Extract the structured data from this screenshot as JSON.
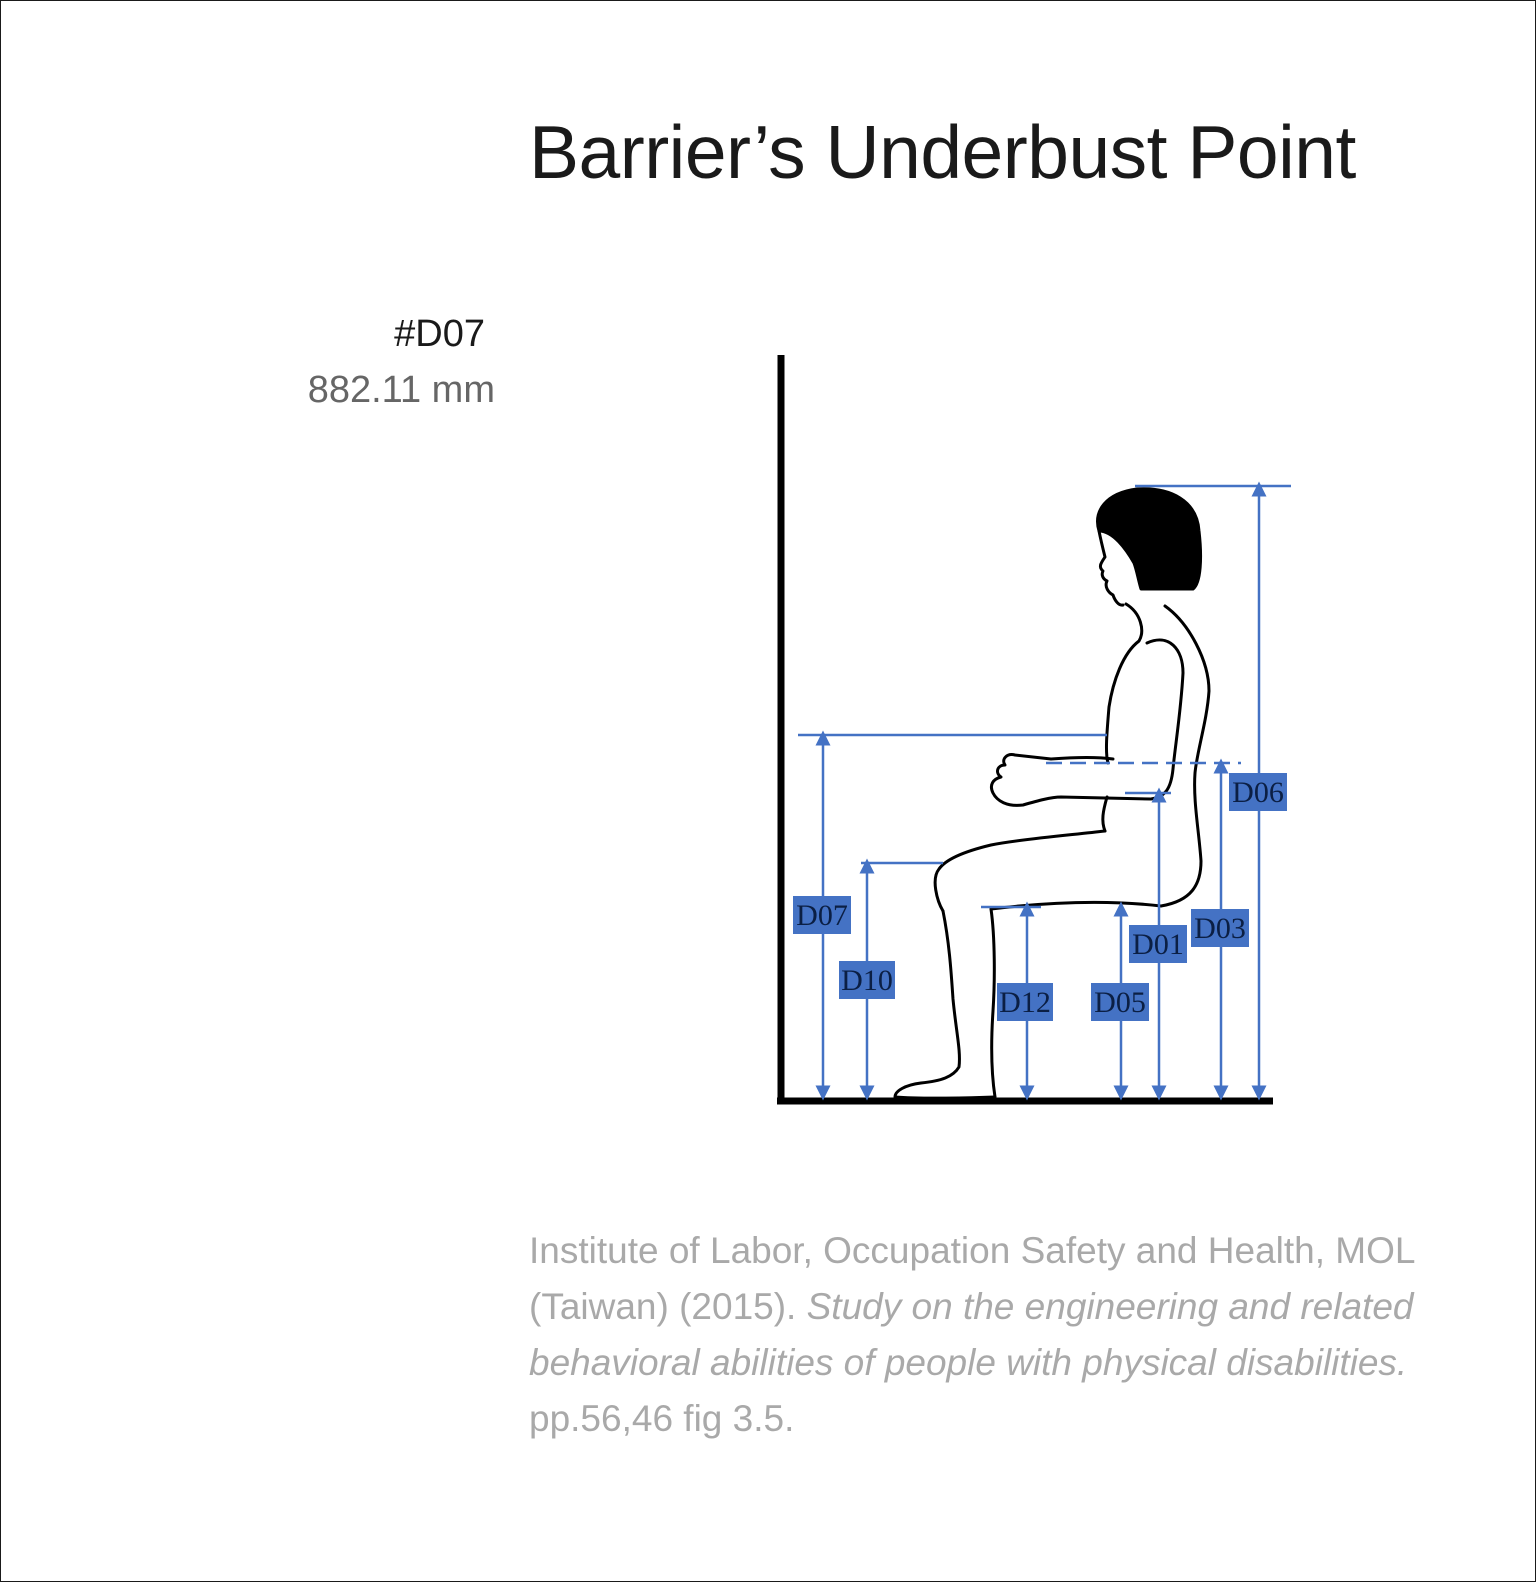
{
  "page": {
    "title": "Barrier’s Underbust Point"
  },
  "measurement": {
    "code": "#D07",
    "value": "882.11 mm"
  },
  "diagram": {
    "labels": [
      "D06",
      "D07",
      "D10",
      "D12",
      "D05",
      "D01",
      "D03"
    ],
    "dimension_color": "#4472c4"
  },
  "citation": {
    "authors": "Institute of Labor, Occupation Safety and Health, MOL (Taiwan) (2015).",
    "title": "Study on the engineering and related behavioral abilities of people with physical disabilities.",
    "pages": "pp.56,46 fig 3.5."
  }
}
